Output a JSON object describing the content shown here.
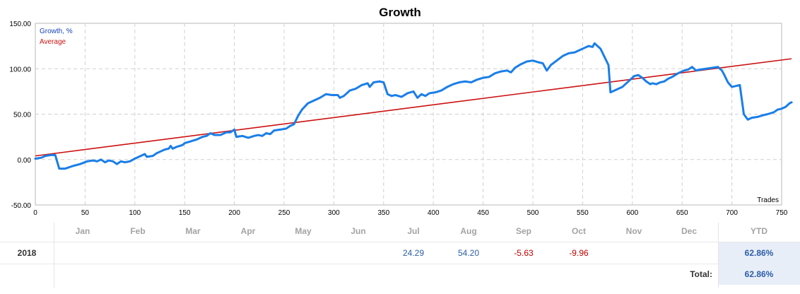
{
  "chart_data": {
    "type": "line",
    "title": "Growth",
    "xlabel": "Trades",
    "ylabel": "",
    "xlim": [
      0,
      750
    ],
    "ylim": [
      -50,
      150
    ],
    "x_ticks": [
      "0",
      "50",
      "100",
      "150",
      "200",
      "250",
      "300",
      "350",
      "400",
      "450",
      "500",
      "550",
      "600",
      "650",
      "700",
      "750"
    ],
    "y_ticks": [
      "-50.00",
      "0.00",
      "50.00",
      "100.00",
      "150.00"
    ],
    "grid": true,
    "legend_position": "top-left",
    "series": [
      {
        "name": "Growth, %",
        "color": "#1a7ee8",
        "points": [
          [
            0,
            1
          ],
          [
            6,
            2
          ],
          [
            10,
            4
          ],
          [
            16,
            5
          ],
          [
            20,
            5
          ],
          [
            24,
            -10
          ],
          [
            30,
            -10
          ],
          [
            38,
            -7
          ],
          [
            45,
            -5
          ],
          [
            52,
            -2
          ],
          [
            58,
            -1
          ],
          [
            62,
            -2
          ],
          [
            66,
            0
          ],
          [
            70,
            -3
          ],
          [
            74,
            -1
          ],
          [
            78,
            -2
          ],
          [
            82,
            -5
          ],
          [
            86,
            -2
          ],
          [
            90,
            -3
          ],
          [
            95,
            -2
          ],
          [
            100,
            1
          ],
          [
            104,
            3
          ],
          [
            110,
            6
          ],
          [
            112,
            3
          ],
          [
            118,
            4
          ],
          [
            122,
            7
          ],
          [
            126,
            9
          ],
          [
            130,
            11
          ],
          [
            134,
            12
          ],
          [
            136,
            15
          ],
          [
            138,
            12
          ],
          [
            142,
            14
          ],
          [
            148,
            16
          ],
          [
            150,
            18
          ],
          [
            156,
            20
          ],
          [
            162,
            22
          ],
          [
            168,
            25
          ],
          [
            172,
            26
          ],
          [
            176,
            29
          ],
          [
            180,
            27
          ],
          [
            186,
            27
          ],
          [
            192,
            30
          ],
          [
            196,
            30
          ],
          [
            200,
            33
          ],
          [
            202,
            25
          ],
          [
            208,
            26
          ],
          [
            214,
            24
          ],
          [
            220,
            26
          ],
          [
            224,
            27
          ],
          [
            228,
            26
          ],
          [
            232,
            29
          ],
          [
            236,
            28
          ],
          [
            240,
            32
          ],
          [
            246,
            33
          ],
          [
            252,
            34
          ],
          [
            256,
            37
          ],
          [
            260,
            39
          ],
          [
            264,
            48
          ],
          [
            268,
            55
          ],
          [
            274,
            62
          ],
          [
            280,
            65
          ],
          [
            286,
            68
          ],
          [
            292,
            72
          ],
          [
            298,
            71
          ],
          [
            304,
            71
          ],
          [
            306,
            68
          ],
          [
            310,
            70
          ],
          [
            316,
            76
          ],
          [
            322,
            78
          ],
          [
            328,
            82
          ],
          [
            334,
            84
          ],
          [
            336,
            80
          ],
          [
            340,
            85
          ],
          [
            346,
            86
          ],
          [
            350,
            85
          ],
          [
            354,
            72
          ],
          [
            358,
            70
          ],
          [
            362,
            71
          ],
          [
            368,
            69
          ],
          [
            374,
            73
          ],
          [
            380,
            75
          ],
          [
            384,
            68
          ],
          [
            388,
            72
          ],
          [
            392,
            70
          ],
          [
            396,
            73
          ],
          [
            402,
            74
          ],
          [
            408,
            76
          ],
          [
            414,
            80
          ],
          [
            420,
            83
          ],
          [
            426,
            85
          ],
          [
            432,
            86
          ],
          [
            438,
            85
          ],
          [
            444,
            88
          ],
          [
            450,
            90
          ],
          [
            456,
            91
          ],
          [
            462,
            95
          ],
          [
            468,
            97
          ],
          [
            474,
            98
          ],
          [
            478,
            96
          ],
          [
            482,
            101
          ],
          [
            488,
            105
          ],
          [
            494,
            108
          ],
          [
            500,
            109
          ],
          [
            506,
            107
          ],
          [
            510,
            106
          ],
          [
            514,
            98
          ],
          [
            518,
            104
          ],
          [
            524,
            109
          ],
          [
            530,
            114
          ],
          [
            536,
            117
          ],
          [
            542,
            118
          ],
          [
            548,
            121
          ],
          [
            552,
            123
          ],
          [
            556,
            125
          ],
          [
            560,
            124
          ],
          [
            562,
            128
          ],
          [
            564,
            126
          ],
          [
            568,
            122
          ],
          [
            572,
            113
          ],
          [
            576,
            104
          ],
          [
            578,
            74
          ],
          [
            582,
            76
          ],
          [
            586,
            78
          ],
          [
            590,
            80
          ],
          [
            594,
            84
          ],
          [
            598,
            88
          ],
          [
            602,
            92
          ],
          [
            606,
            93
          ],
          [
            610,
            90
          ],
          [
            614,
            86
          ],
          [
            618,
            83
          ],
          [
            620,
            84
          ],
          [
            624,
            83
          ],
          [
            628,
            85
          ],
          [
            632,
            86
          ],
          [
            636,
            89
          ],
          [
            640,
            91
          ],
          [
            646,
            95
          ],
          [
            652,
            98
          ],
          [
            656,
            99
          ],
          [
            660,
            102
          ],
          [
            664,
            98
          ],
          [
            668,
            99
          ],
          [
            674,
            100
          ],
          [
            680,
            101
          ],
          [
            686,
            102
          ],
          [
            690,
            98
          ],
          [
            692,
            94
          ],
          [
            696,
            85
          ],
          [
            700,
            80
          ],
          [
            704,
            81
          ],
          [
            708,
            82
          ],
          [
            712,
            50
          ],
          [
            716,
            44
          ],
          [
            720,
            46
          ],
          [
            726,
            47
          ],
          [
            732,
            49
          ],
          [
            736,
            50
          ],
          [
            742,
            52
          ],
          [
            746,
            55
          ],
          [
            750,
            56
          ],
          [
            754,
            58
          ],
          [
            758,
            62
          ],
          [
            760,
            63
          ]
        ]
      },
      {
        "name": "Average",
        "color": "#cc1111",
        "points": [
          [
            0,
            4
          ],
          [
            760,
            111
          ]
        ]
      }
    ]
  },
  "table": {
    "months": [
      "Jan",
      "Feb",
      "Mar",
      "Apr",
      "May",
      "Jun",
      "Jul",
      "Aug",
      "Sep",
      "Oct",
      "Nov",
      "Dec"
    ],
    "ytd_label": "YTD",
    "year": "2018",
    "values": [
      "",
      "",
      "",
      "",
      "",
      "",
      "24.29",
      "54.20",
      "-5.63",
      "-9.96",
      "",
      ""
    ],
    "ytd_value": "62.86%",
    "total_label": "Total:",
    "total_value": "62.86%"
  }
}
